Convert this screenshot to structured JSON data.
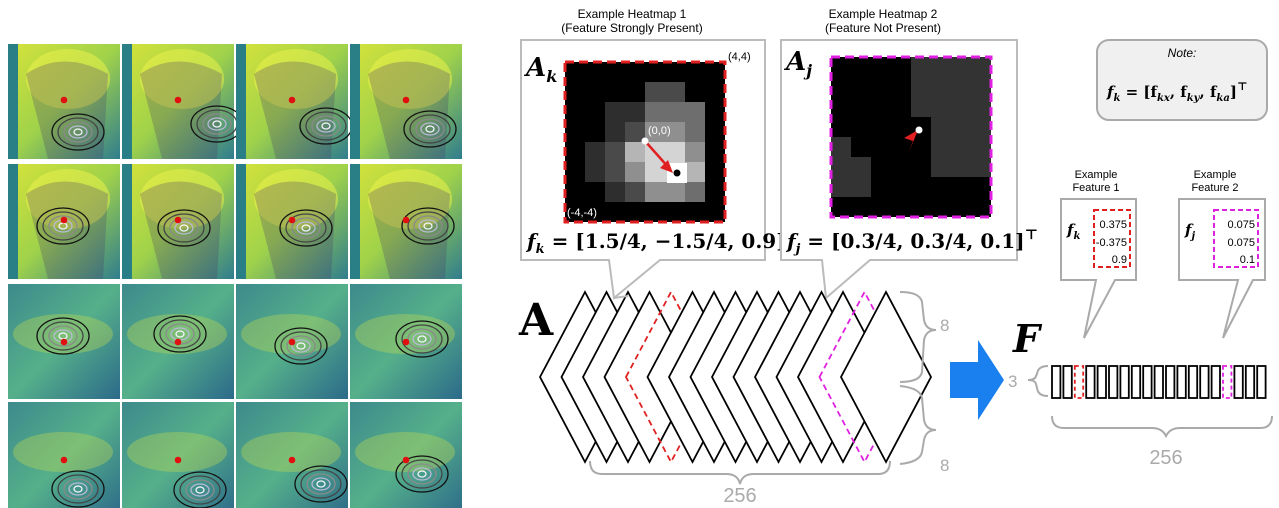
{
  "left_grid": {
    "rows": 4,
    "cols": 4
  },
  "heatmap1": {
    "title_line1": "Example Heatmap 1",
    "title_line2": "(Feature Strongly Present)",
    "symbol": "A",
    "subscript": "k",
    "corner_top_right": "(4,4)",
    "corner_bottom_left": "(-4,-4)",
    "center_label": "(0,0)",
    "formula_lhs": "f",
    "formula_sub": "k",
    "formula_rhs": " = [1.5/4, −1.5/4, 0.9]",
    "transpose": "⊤",
    "border_color": "#e02020"
  },
  "heatmap2": {
    "title_line1": "Example Heatmap 2",
    "title_line2": "(Feature Not Present)",
    "symbol": "A",
    "subscript": "j",
    "formula_lhs": "f",
    "formula_sub": "j",
    "formula_rhs": " = [0.3/4, 0.3/4, 0.1]",
    "transpose": "⊤",
    "border_color": "#e020e0"
  },
  "note": {
    "title": "Note:",
    "formula_lhs": "f",
    "formula_sub": "k",
    "formula_rhs": " = [f",
    "fx_sub": "kx",
    "fy_sub": "ky",
    "fa_sub": "ka",
    "comma": ", f",
    "close": "]",
    "transpose": "⊤"
  },
  "tensor_A": {
    "label": "A",
    "dim_depth": "256",
    "dim_h": "8",
    "dim_w": "8"
  },
  "matrix_F": {
    "label": "F",
    "dim_rows": "3",
    "dim_cols": "256"
  },
  "feature1": {
    "title_line1": "Example",
    "title_line2": "Feature 1",
    "symbol": "f",
    "subscript": "k",
    "values": [
      "0.375",
      "-0.375",
      "0.9"
    ]
  },
  "feature2": {
    "title_line1": "Example",
    "title_line2": "Feature 2",
    "symbol": "f",
    "subscript": "j",
    "values": [
      "0.075",
      "0.075",
      "0.1"
    ]
  },
  "colors": {
    "red": "#e02020",
    "magenta": "#e020e0",
    "arrow_blue": "#1a80f0",
    "gray": "#aaaaaa"
  }
}
